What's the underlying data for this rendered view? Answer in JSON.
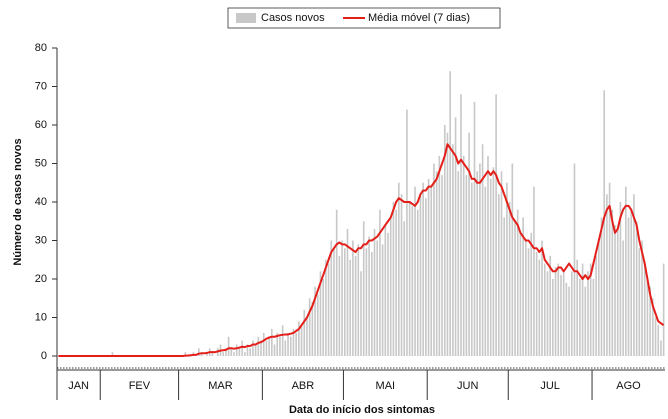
{
  "chart_data": {
    "type": "bar",
    "y_label": "Número de casos novos",
    "x_label": "Data do início dos sintomas",
    "categories": [
      "JAN",
      "JAN",
      "JAN",
      "JAN",
      "JAN",
      "JAN",
      "JAN",
      "JAN",
      "JAN",
      "JAN",
      "JAN",
      "JAN",
      "JAN",
      "JAN",
      "JAN",
      "JAN",
      "FEV",
      "FEV",
      "FEV",
      "FEV",
      "FEV",
      "FEV",
      "FEV",
      "FEV",
      "FEV",
      "FEV",
      "FEV",
      "FEV",
      "FEV",
      "FEV",
      "FEV",
      "FEV",
      "FEV",
      "FEV",
      "FEV",
      "FEV",
      "FEV",
      "FEV",
      "FEV",
      "FEV",
      "FEV",
      "FEV",
      "FEV",
      "FEV",
      "FEV",
      "MAR",
      "MAR",
      "MAR",
      "MAR",
      "MAR",
      "MAR",
      "MAR",
      "MAR",
      "MAR",
      "MAR",
      "MAR",
      "MAR",
      "MAR",
      "MAR",
      "MAR",
      "MAR",
      "MAR",
      "MAR",
      "MAR",
      "MAR",
      "MAR",
      "MAR",
      "MAR",
      "MAR",
      "MAR",
      "MAR",
      "MAR",
      "MAR",
      "MAR",
      "MAR",
      "MAR",
      "ABR",
      "ABR",
      "ABR",
      "ABR",
      "ABR",
      "ABR",
      "ABR",
      "ABR",
      "ABR",
      "ABR",
      "ABR",
      "ABR",
      "ABR",
      "ABR",
      "ABR",
      "ABR",
      "ABR",
      "ABR",
      "ABR",
      "ABR",
      "ABR",
      "ABR",
      "ABR",
      "ABR",
      "ABR",
      "ABR",
      "ABR",
      "ABR",
      "ABR",
      "ABR",
      "MAI",
      "MAI",
      "MAI",
      "MAI",
      "MAI",
      "MAI",
      "MAI",
      "MAI",
      "MAI",
      "MAI",
      "MAI",
      "MAI",
      "MAI",
      "MAI",
      "MAI",
      "MAI",
      "MAI",
      "MAI",
      "MAI",
      "MAI",
      "MAI",
      "MAI",
      "MAI",
      "MAI",
      "MAI",
      "MAI",
      "MAI",
      "MAI",
      "MAI",
      "MAI",
      "MAI",
      "JUN",
      "JUN",
      "JUN",
      "JUN",
      "JUN",
      "JUN",
      "JUN",
      "JUN",
      "JUN",
      "JUN",
      "JUN",
      "JUN",
      "JUN",
      "JUN",
      "JUN",
      "JUN",
      "JUN",
      "JUN",
      "JUN",
      "JUN",
      "JUN",
      "JUN",
      "JUN",
      "JUN",
      "JUN",
      "JUN",
      "JUN",
      "JUN",
      "JUN",
      "JUN",
      "JUL",
      "JUL",
      "JUL",
      "JUL",
      "JUL",
      "JUL",
      "JUL",
      "JUL",
      "JUL",
      "JUL",
      "JUL",
      "JUL",
      "JUL",
      "JUL",
      "JUL",
      "JUL",
      "JUL",
      "JUL",
      "JUL",
      "JUL",
      "JUL",
      "JUL",
      "JUL",
      "JUL",
      "JUL",
      "JUL",
      "JUL",
      "JUL",
      "JUL",
      "JUL",
      "JUL",
      "AGO",
      "AGO",
      "AGO",
      "AGO",
      "AGO",
      "AGO",
      "AGO",
      "AGO",
      "AGO",
      "AGO",
      "AGO",
      "AGO",
      "AGO",
      "AGO",
      "AGO",
      "AGO",
      "AGO",
      "AGO",
      "AGO",
      "AGO",
      "AGO",
      "AGO",
      "AGO",
      "AGO",
      "AGO",
      "AGO",
      "AGO"
    ],
    "series": [
      {
        "name": "Casos novos",
        "type": "bar",
        "color": "#c8c8c8",
        "values": [
          0,
          0,
          0,
          0,
          0,
          0,
          0,
          0,
          0,
          0,
          0,
          0,
          0,
          0,
          0,
          0,
          0,
          0,
          0,
          0,
          1,
          0,
          0,
          0,
          0,
          0,
          0,
          0,
          0,
          0,
          0,
          0,
          0,
          0,
          0,
          0,
          0,
          0,
          0,
          0,
          0,
          0,
          0,
          0,
          0,
          0,
          0,
          1,
          0,
          0,
          1,
          0,
          2,
          1,
          0,
          1,
          2,
          1,
          0,
          2,
          3,
          1,
          2,
          5,
          2,
          1,
          3,
          2,
          4,
          1,
          3,
          2,
          4,
          3,
          5,
          4,
          6,
          4,
          5,
          7,
          3,
          6,
          5,
          8,
          4,
          6,
          5,
          7,
          6,
          9,
          8,
          12,
          10,
          15,
          14,
          18,
          16,
          22,
          20,
          25,
          24,
          30,
          28,
          38,
          26,
          30,
          28,
          33,
          25,
          30,
          26,
          29,
          22,
          35,
          28,
          31,
          27,
          33,
          30,
          38,
          29,
          34,
          32,
          36,
          40,
          38,
          45,
          42,
          35,
          64,
          40,
          39,
          44,
          38,
          42,
          45,
          41,
          46,
          44,
          50,
          48,
          52,
          47,
          60,
          58,
          74,
          55,
          62,
          48,
          68,
          52,
          47,
          58,
          45,
          66,
          48,
          50,
          55,
          44,
          52,
          46,
          49,
          68,
          42,
          48,
          36,
          45,
          40,
          50,
          35,
          38,
          32,
          36,
          30,
          28,
          32,
          44,
          27,
          25,
          30,
          24,
          22,
          26,
          20,
          23,
          24,
          21,
          22,
          19,
          18,
          22,
          50,
          25,
          20,
          24,
          18,
          22,
          24,
          20,
          26,
          30,
          36,
          69,
          42,
          45,
          38,
          34,
          33,
          40,
          30,
          44,
          36,
          38,
          42,
          35,
          28,
          30,
          24,
          20,
          18,
          15,
          10,
          8,
          4,
          24
        ]
      },
      {
        "name": "Média móvel (7 dias)",
        "type": "line",
        "color": "#e41f1a",
        "values": [
          0,
          0,
          0,
          0,
          0,
          0,
          0,
          0,
          0,
          0,
          0,
          0,
          0,
          0,
          0,
          0,
          0,
          0,
          0,
          0,
          0,
          0,
          0,
          0,
          0,
          0,
          0,
          0,
          0,
          0,
          0,
          0,
          0,
          0,
          0,
          0,
          0,
          0,
          0,
          0,
          0,
          0,
          0,
          0,
          0,
          0,
          0,
          0.1,
          0.1,
          0.2,
          0.3,
          0.3,
          0.6,
          0.7,
          0.7,
          0.8,
          1,
          1,
          1,
          1.2,
          1.4,
          1.5,
          1.6,
          2,
          2,
          1.9,
          2,
          2.2,
          2.4,
          2.3,
          2.6,
          2.6,
          3,
          3,
          3.4,
          3.6,
          4,
          4.5,
          4.8,
          5,
          5,
          5.2,
          5.4,
          5.5,
          5.6,
          5.6,
          5.8,
          6,
          6.5,
          7,
          8,
          9,
          10,
          11.5,
          13,
          15,
          17,
          19,
          21,
          23,
          25,
          27,
          28,
          29,
          29.5,
          29,
          29,
          28.5,
          28,
          27.5,
          27,
          28,
          28,
          29,
          29,
          30,
          30,
          30.5,
          31,
          32,
          33,
          34,
          35,
          36,
          38,
          40,
          41,
          40.5,
          40,
          40,
          40,
          39.5,
          39,
          40,
          42,
          43,
          43,
          44,
          44,
          45,
          46,
          48,
          50,
          52,
          55,
          54,
          53,
          52,
          50,
          51,
          50,
          49,
          48,
          46,
          46,
          45,
          45,
          46,
          47,
          48,
          47,
          48,
          47,
          45,
          44,
          42,
          40,
          38,
          36,
          35,
          34,
          32,
          31,
          30,
          30,
          29,
          28,
          28,
          27,
          28,
          25,
          24,
          23,
          22,
          22,
          23,
          23,
          22,
          23,
          24,
          23,
          22,
          22,
          21,
          20,
          21,
          20,
          21,
          24,
          27,
          30,
          33,
          36,
          38,
          39,
          35,
          32,
          33,
          36,
          38,
          39,
          39,
          38,
          36,
          34,
          30,
          27,
          24,
          20,
          16,
          13,
          11,
          9,
          8.5,
          8
        ]
      }
    ],
    "ylim": [
      0,
      80
    ],
    "yticks": [
      0,
      10,
      20,
      30,
      40,
      50,
      60,
      70,
      80
    ],
    "grid": false,
    "legend": "top"
  }
}
